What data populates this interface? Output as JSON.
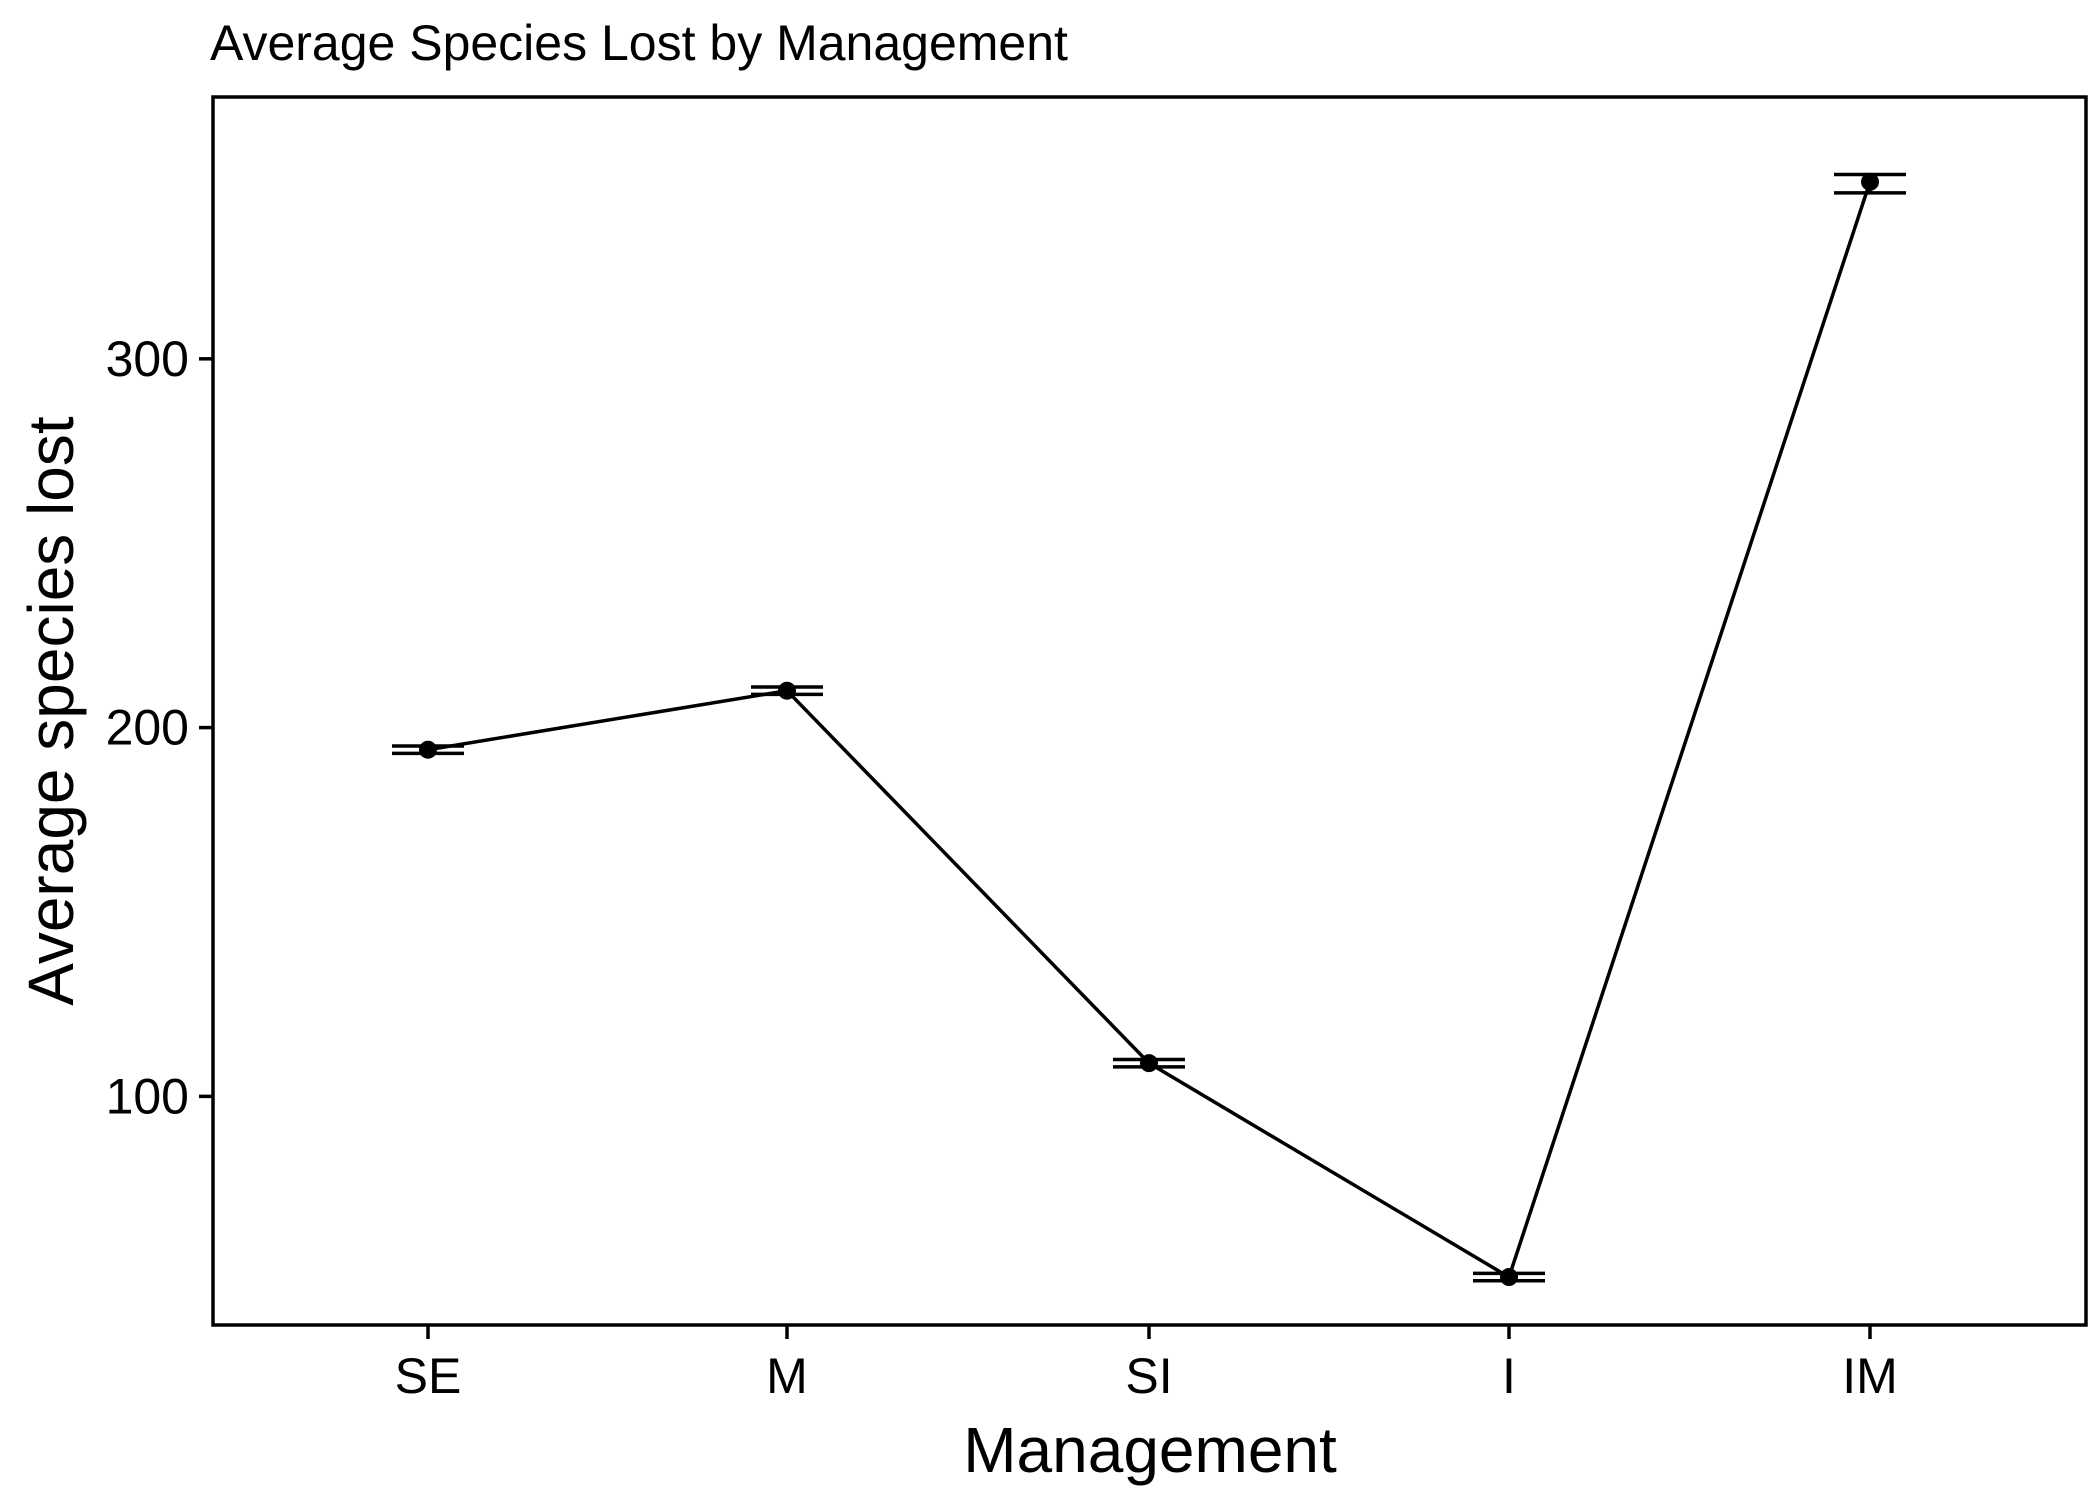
{
  "chart_data": {
    "type": "line",
    "title": "Average Species Lost by Management",
    "xlabel": "Management",
    "ylabel": "Average species lost",
    "categories": [
      "SE",
      "M",
      "SI",
      "I",
      "IM"
    ],
    "series": [
      {
        "values": [
          194,
          210,
          109,
          51,
          348
        ],
        "error_low": [
          193,
          209,
          108,
          50,
          345
        ],
        "error_high": [
          195,
          211,
          110,
          52,
          350
        ]
      }
    ],
    "yticks": [
      100,
      200,
      300
    ],
    "ylim": [
      38,
      371
    ],
    "grid": false,
    "legend": "none",
    "colors": {
      "line": "#000000",
      "point": "#000000",
      "background": "#ffffff"
    }
  }
}
